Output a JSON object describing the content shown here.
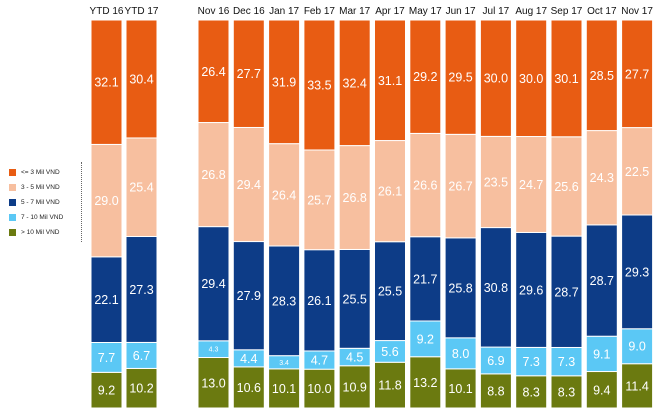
{
  "chart_data": {
    "type": "bar",
    "stacked": true,
    "normalized_percent": true,
    "groups": [
      {
        "name": "ytd",
        "categories": [
          "YTD 16",
          "YTD 17"
        ]
      },
      {
        "name": "monthly",
        "categories": [
          "Nov 16",
          "Dec 16",
          "Jan 17",
          "Feb 17",
          "Mar 17",
          "Apr 17",
          "May 17",
          "Jun 17",
          "Jul 17",
          "Aug 17",
          "Sep 17",
          "Oct 17",
          "Nov 17"
        ]
      }
    ],
    "categories": [
      "YTD 16",
      "YTD 17",
      "Nov 16",
      "Dec 16",
      "Jan 17",
      "Feb 17",
      "Mar 17",
      "Apr 17",
      "May 17",
      "Jun 17",
      "Jul 17",
      "Aug 17",
      "Sep 17",
      "Oct 17",
      "Nov 17"
    ],
    "series": [
      {
        "name": "> 10 Mil VND",
        "color": "#6b7a10",
        "values": [
          9.2,
          10.2,
          13.0,
          10.6,
          10.1,
          10.0,
          10.9,
          11.8,
          13.2,
          10.1,
          8.8,
          8.3,
          8.3,
          9.4,
          11.4
        ]
      },
      {
        "name": "7 - 10 Mil VND",
        "color": "#5bc8f5",
        "values": [
          7.7,
          6.7,
          4.3,
          4.4,
          3.4,
          4.7,
          4.5,
          5.6,
          9.2,
          8.0,
          6.9,
          7.3,
          7.3,
          9.1,
          9.0
        ]
      },
      {
        "name": "5 - 7 Mil VND",
        "color": "#0d3c87",
        "values": [
          22.1,
          27.3,
          29.4,
          27.9,
          28.3,
          26.1,
          25.5,
          25.5,
          21.7,
          25.8,
          30.8,
          29.6,
          28.7,
          28.7,
          29.3
        ]
      },
      {
        "name": "3 - 5 Mil VND",
        "color": "#f7bf9f",
        "values": [
          29.0,
          25.4,
          26.8,
          29.4,
          26.4,
          25.7,
          26.8,
          26.1,
          26.6,
          26.7,
          23.5,
          24.7,
          25.6,
          24.3,
          22.5
        ]
      },
      {
        "name": "<= 3 Mil VND",
        "color": "#e85c13",
        "values": [
          32.1,
          30.4,
          26.4,
          27.7,
          31.9,
          33.5,
          32.4,
          31.1,
          29.2,
          29.5,
          30.0,
          30.0,
          30.1,
          28.5,
          27.7
        ]
      }
    ],
    "small_label_values": [
      4.3,
      3.4
    ],
    "legend_position": "left",
    "legend": [
      "<= 3 Mil VND",
      "3 - 5 Mil VND",
      "5 - 7 Mil VND",
      "7 - 10 Mil VND",
      "> 10 Mil VND"
    ],
    "title": "",
    "xlabel": "",
    "ylabel": "",
    "ylim": [
      0,
      100
    ],
    "grid": false
  }
}
